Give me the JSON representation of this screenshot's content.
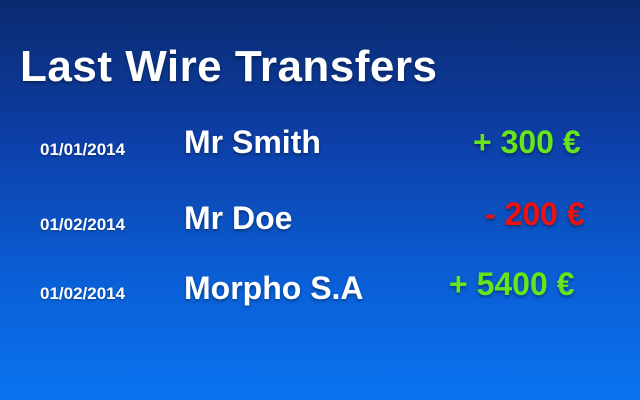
{
  "title": "Last Wire Transfers",
  "colors": {
    "positive": "#66e61a",
    "negative": "#ee1111",
    "text": "#ffffff",
    "background_top": "#0a2a6e",
    "background_bottom": "#0a74f0"
  },
  "transfers": [
    {
      "date": "01/01/2014",
      "name": "Mr Smith",
      "amount": "+ 300 €",
      "direction": "positive"
    },
    {
      "date": "01/02/2014",
      "name": "Mr Doe",
      "amount": "- 200 €",
      "direction": "negative"
    },
    {
      "date": "01/02/2014",
      "name": "Morpho S.A",
      "amount": "+ 5400 €",
      "direction": "positive"
    }
  ]
}
